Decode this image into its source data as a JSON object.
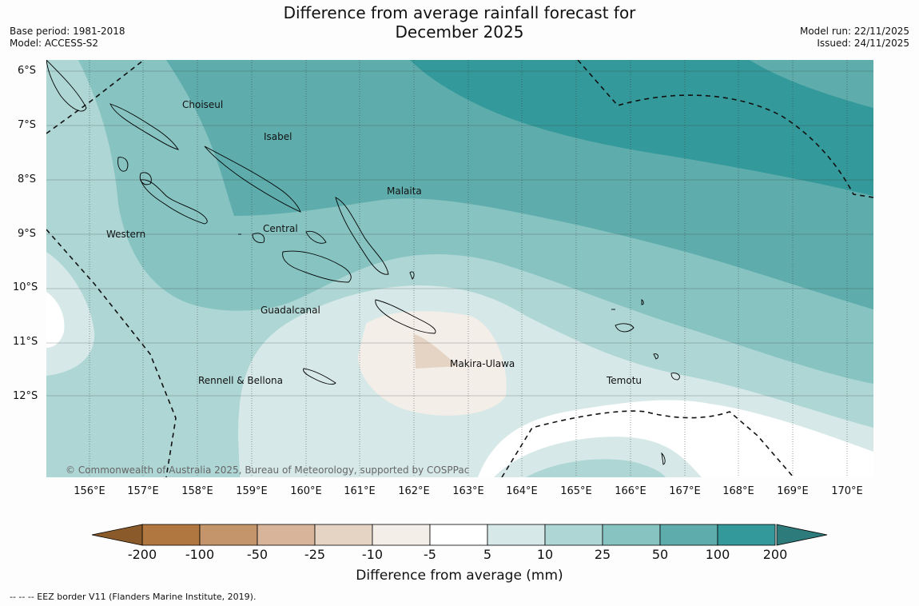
{
  "header": {
    "title_line1": "Difference from average rainfall forecast for",
    "title_line2": "December 2025",
    "base_period": "Base period: 1981-2018",
    "model": "Model: ACCESS-S2",
    "model_run": "Model run: 22/11/2025",
    "issued": "Issued: 24/11/2025"
  },
  "map": {
    "copyright": "© Commonwealth of Australia 2025, Bureau of Meteorology, supported by COSPPac",
    "lat_labels": [
      "6°S",
      "7°S",
      "8°S",
      "9°S",
      "10°S",
      "11°S",
      "12°S"
    ],
    "lon_labels": [
      "156°E",
      "157°E",
      "158°E",
      "159°E",
      "160°E",
      "161°E",
      "162°E",
      "163°E",
      "164°E",
      "165°E",
      "166°E",
      "167°E",
      "168°E",
      "169°E",
      "170°E"
    ],
    "regions": [
      "Choiseul",
      "Isabel",
      "Malaita",
      "Central",
      "Western",
      "Guadalcanal",
      "Rennell & Bellona",
      "Makira-Ulawa",
      "Temotu"
    ]
  },
  "colorbar": {
    "ticks": [
      "-200",
      "-100",
      "-50",
      "-25",
      "-10",
      "-5",
      "5",
      "10",
      "25",
      "50",
      "100",
      "200"
    ],
    "colors": [
      "#8a5a2b",
      "#b07840",
      "#c4956a",
      "#d8b59a",
      "#e5d4c4",
      "#f4eee8",
      "#ffffff",
      "#d6e9e8",
      "#aed6d4",
      "#86c3c1",
      "#5eadac",
      "#34999a",
      "#2e7b7c"
    ],
    "title": "Difference from average (mm)"
  },
  "footer": {
    "eez_note": "--  --  -- EEZ border V11 (Flanders Marine Institute, 2019)."
  }
}
